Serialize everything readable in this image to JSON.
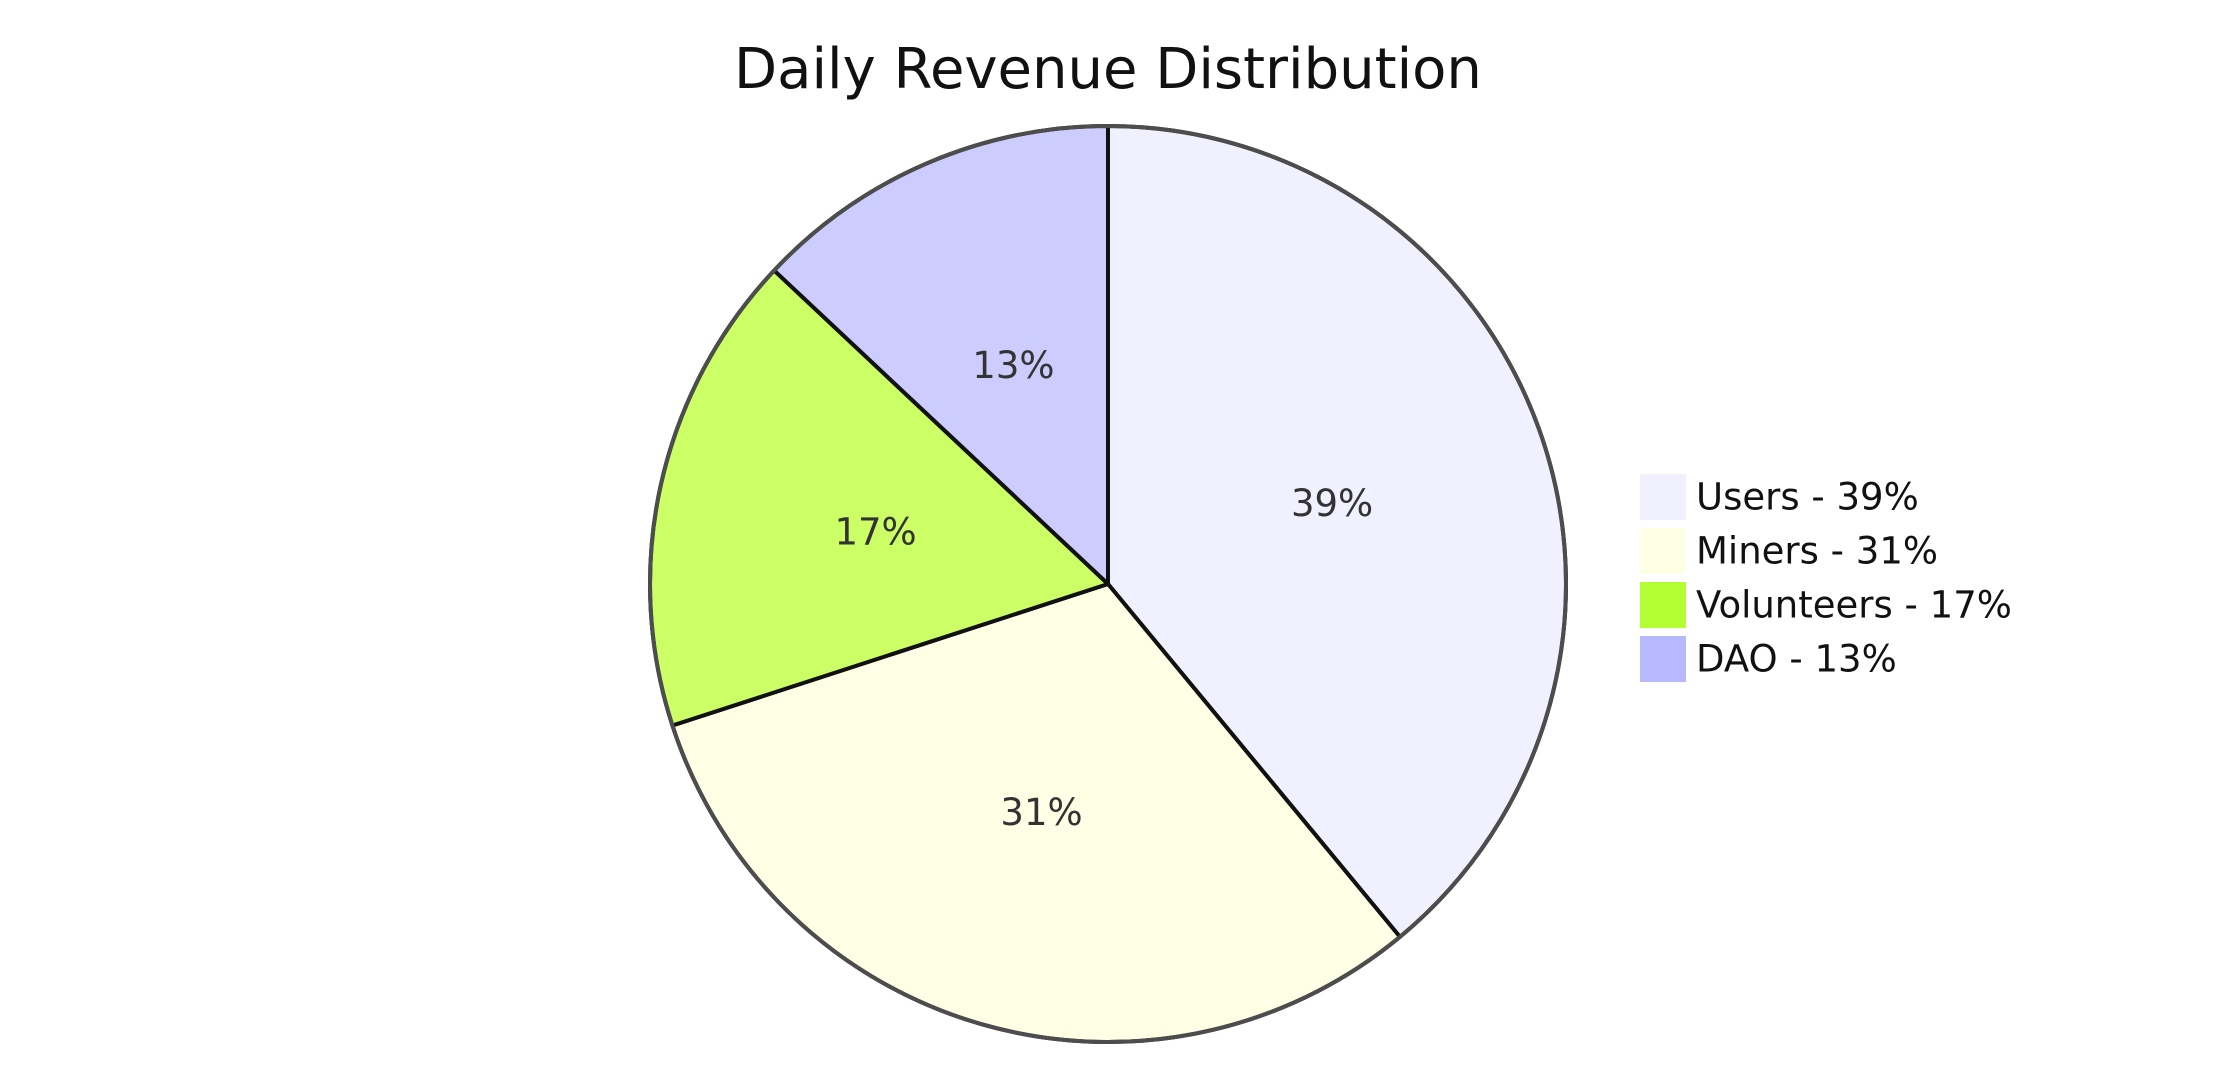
{
  "chart_data": {
    "type": "pie",
    "title": "Daily Revenue Distribution",
    "slices": [
      {
        "label": "Users",
        "value": 39,
        "color": "#f0f0ff",
        "display": "39%",
        "legend": "Users - 39%"
      },
      {
        "label": "Miners",
        "value": 31,
        "color": "#ffffe6",
        "display": "31%",
        "legend": "Miners - 31%"
      },
      {
        "label": "Volunteers",
        "value": 17,
        "color": "#ccff66",
        "display": "17%",
        "legend": "Volunteers - 17%"
      },
      {
        "label": "DAO",
        "value": 13,
        "color": "#ccccff",
        "display": "13%",
        "legend": "DAO - 13%"
      }
    ],
    "legend_colors": [
      "#f0f0ff",
      "#ffffe6",
      "#b3ff33",
      "#b8b8ff"
    ],
    "legend_position": "right",
    "start_angle": "top, clockwise"
  }
}
